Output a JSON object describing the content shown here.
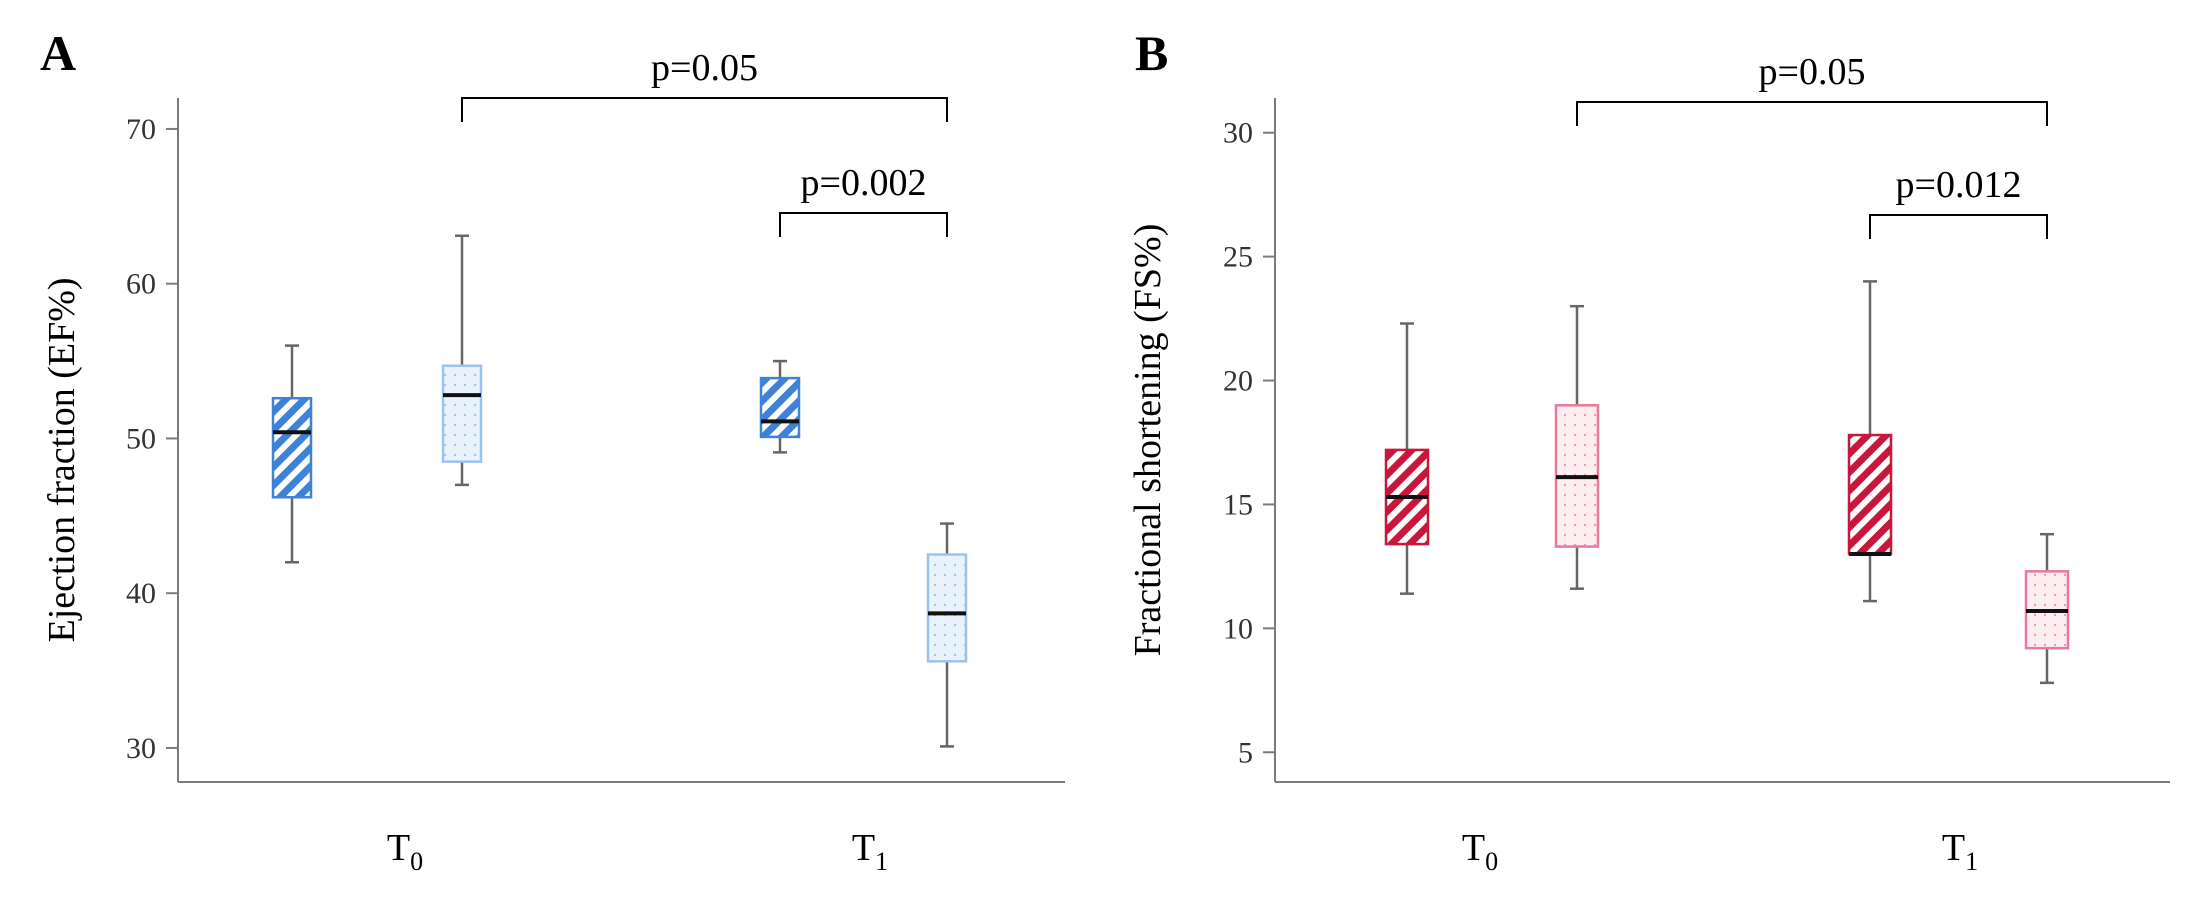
{
  "chart_data": [
    {
      "type": "box",
      "panel": "A",
      "ylabel": "Ejection fraction (EF%)",
      "ylim": [
        27.8,
        72
      ],
      "yticks": [
        30,
        40,
        50,
        60,
        70
      ],
      "categories": [
        {
          "main": "T",
          "sub": "0"
        },
        {
          "main": "T",
          "sub": "1"
        }
      ],
      "colors": {
        "hatch": "#3d82d6",
        "dotted_edge": "#9cc3ef",
        "dotted_fill": "#eaf3fc",
        "dot": "#9cc3ef"
      },
      "boxes": [
        {
          "category": 0,
          "pattern": "hatch",
          "min": 42,
          "q1": 46.2,
          "median": 50.4,
          "q3": 52.6,
          "max": 56
        },
        {
          "category": 0,
          "pattern": "dots",
          "min": 47,
          "q1": 48.5,
          "median": 52.8,
          "q3": 54.7,
          "max": 63.1
        },
        {
          "category": 1,
          "pattern": "hatch",
          "min": 49.1,
          "q1": 50.1,
          "median": 51.1,
          "q3": 53.9,
          "max": 55
        },
        {
          "category": 1,
          "pattern": "dots",
          "min": 30.1,
          "q1": 35.6,
          "median": 38.7,
          "q3": 42.5,
          "max": 44.5
        }
      ],
      "significance": [
        {
          "from": 1,
          "to": 3,
          "label": "p=0.05",
          "level": 0
        },
        {
          "from": 2,
          "to": 3,
          "label": "p=0.002",
          "level": 1
        }
      ]
    },
    {
      "type": "box",
      "panel": "B",
      "ylabel": "Fractional shortening (FS%)",
      "ylim": [
        3.8,
        31.4
      ],
      "yticks": [
        5,
        10,
        15,
        20,
        25,
        30
      ],
      "categories": [
        {
          "main": "T",
          "sub": "0"
        },
        {
          "main": "T",
          "sub": "1"
        }
      ],
      "colors": {
        "hatch": "#c8173a",
        "dotted_edge": "#e9799a",
        "dotted_fill": "#fdeef2",
        "dot": "#ef9ab2"
      },
      "boxes": [
        {
          "category": 0,
          "pattern": "hatch",
          "min": 11.4,
          "q1": 13.4,
          "median": 15.3,
          "q3": 17.2,
          "max": 22.3
        },
        {
          "category": 0,
          "pattern": "dots",
          "min": 11.6,
          "q1": 13.3,
          "median": 16.1,
          "q3": 19.0,
          "max": 23.0
        },
        {
          "category": 1,
          "pattern": "hatch",
          "min": 11.1,
          "q1": 13.0,
          "median": 13.0,
          "q3": 17.8,
          "max": 24.0
        },
        {
          "category": 1,
          "pattern": "dots",
          "min": 7.8,
          "q1": 9.2,
          "median": 10.7,
          "q3": 12.3,
          "max": 13.8
        }
      ],
      "significance": [
        {
          "from": 1,
          "to": 3,
          "label": "p=0.05",
          "level": 0
        },
        {
          "from": 2,
          "to": 3,
          "label": "p=0.012",
          "level": 1
        }
      ]
    }
  ]
}
